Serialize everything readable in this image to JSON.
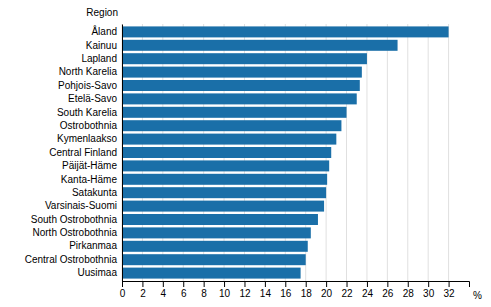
{
  "chart_data": {
    "type": "bar",
    "orientation": "horizontal",
    "categories": [
      "Uusimaa",
      "Central Ostrobothnia",
      "Pirkanmaa",
      "North Ostrobothnia",
      "South Ostrobothnia",
      "Varsinais-Suomi",
      "Satakunta",
      "Kanta-Häme",
      "Päijät-Häme",
      "Central Finland",
      "Kymenlaakso",
      "Ostrobothnia",
      "South Karelia",
      "Etelä-Savo",
      "Pohjois-Savo",
      "North Karelia",
      "Lapland",
      "Kainuu",
      "Åland"
    ],
    "values": [
      17.5,
      18.0,
      18.2,
      18.5,
      19.2,
      19.8,
      20.0,
      20.1,
      20.3,
      20.5,
      21.0,
      21.5,
      22.0,
      23.0,
      23.3,
      23.5,
      24.0,
      27.0,
      32.0
    ],
    "color": "#1a6fa8",
    "ylabel": "Region",
    "xlabel": "%",
    "xlim": [
      0,
      34
    ],
    "xticks": [
      0,
      2,
      4,
      6,
      8,
      10,
      12,
      14,
      16,
      18,
      20,
      22,
      24,
      26,
      28,
      30,
      32
    ],
    "grid": true
  }
}
